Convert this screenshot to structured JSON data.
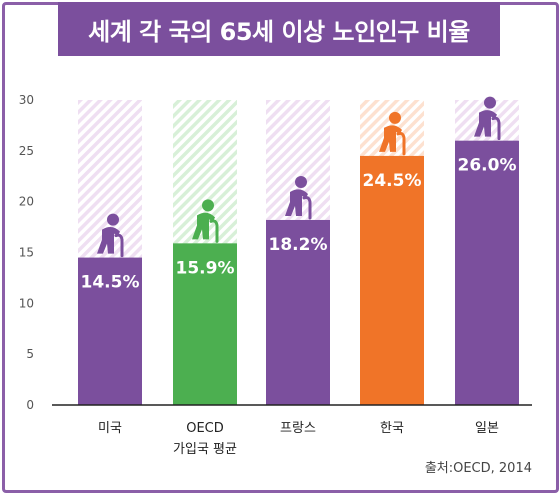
{
  "chart_data": {
    "type": "bar",
    "title": "세계 각 국의 65세 이상 노인인구 비율",
    "categories": [
      "미국",
      "OECD",
      "프랑스",
      "한국",
      "일본"
    ],
    "category_sublabels": [
      "",
      "가입국 평균",
      "",
      "",
      ""
    ],
    "values": [
      14.5,
      15.9,
      18.2,
      24.5,
      26.0
    ],
    "value_labels": [
      "14.5%",
      "15.9%",
      "18.2%",
      "24.5%",
      "26.0%"
    ],
    "ylim": [
      0,
      30
    ],
    "yticks": [
      0,
      5,
      10,
      15,
      20,
      25,
      30
    ],
    "grid": false,
    "source": "출처:OECD, 2014",
    "colors": {
      "bar": [
        "#7b4f9d",
        "#4caf50",
        "#7b4f9d",
        "#f07428",
        "#7b4f9d"
      ],
      "background_hatch": [
        "#efdff2",
        "#d8f0d8",
        "#efdff2",
        "#fde1d0",
        "#efdff2"
      ],
      "title_bg": "#7b4f9d",
      "frame": "#8b5fa8"
    },
    "icon": "elderly-person-with-cane-icon"
  }
}
